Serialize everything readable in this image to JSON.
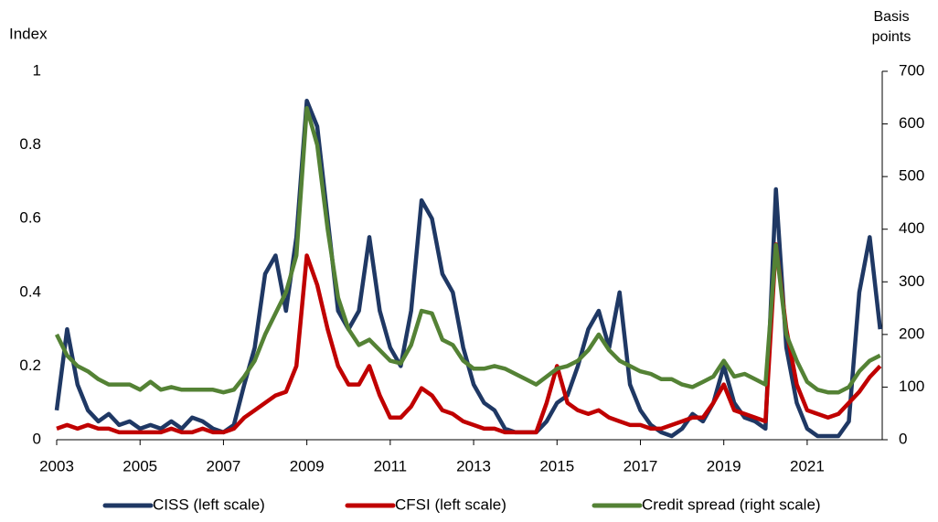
{
  "chart_data": {
    "type": "line",
    "ylabel": "Index",
    "y2label": "Basis points",
    "x": [
      2003,
      2003.25,
      2003.5,
      2003.75,
      2004,
      2004.25,
      2004.5,
      2004.75,
      2005,
      2005.25,
      2005.5,
      2005.75,
      2006,
      2006.25,
      2006.5,
      2006.75,
      2007,
      2007.25,
      2007.5,
      2007.75,
      2008,
      2008.25,
      2008.5,
      2008.75,
      2009,
      2009.25,
      2009.5,
      2009.75,
      2010,
      2010.25,
      2010.5,
      2010.75,
      2011,
      2011.25,
      2011.5,
      2011.75,
      2012,
      2012.25,
      2012.5,
      2012.75,
      2013,
      2013.25,
      2013.5,
      2013.75,
      2014,
      2014.25,
      2014.5,
      2014.75,
      2015,
      2015.25,
      2015.5,
      2015.75,
      2016,
      2016.25,
      2016.5,
      2016.75,
      2017,
      2017.25,
      2017.5,
      2017.75,
      2018,
      2018.25,
      2018.5,
      2018.75,
      2019,
      2019.25,
      2019.5,
      2019.75,
      2020,
      2020.25,
      2020.5,
      2020.75,
      2021,
      2021.25,
      2021.5,
      2021.75,
      2022,
      2022.25,
      2022.5,
      2022.75
    ],
    "series": [
      {
        "name": "CISS (left scale)",
        "color": "#1f3864",
        "values": [
          0.08,
          0.3,
          0.15,
          0.08,
          0.05,
          0.07,
          0.04,
          0.05,
          0.03,
          0.04,
          0.03,
          0.05,
          0.03,
          0.06,
          0.05,
          0.03,
          0.02,
          0.04,
          0.15,
          0.25,
          0.45,
          0.5,
          0.35,
          0.55,
          0.92,
          0.85,
          0.6,
          0.35,
          0.3,
          0.35,
          0.55,
          0.35,
          0.25,
          0.2,
          0.35,
          0.65,
          0.6,
          0.45,
          0.4,
          0.25,
          0.15,
          0.1,
          0.08,
          0.03,
          0.02,
          0.02,
          0.02,
          0.05,
          0.1,
          0.12,
          0.2,
          0.3,
          0.35,
          0.25,
          0.4,
          0.15,
          0.08,
          0.04,
          0.02,
          0.01,
          0.03,
          0.07,
          0.05,
          0.1,
          0.2,
          0.1,
          0.06,
          0.05,
          0.03,
          0.68,
          0.25,
          0.1,
          0.03,
          0.01,
          0.01,
          0.01,
          0.05,
          0.4,
          0.55,
          0.3
        ]
      },
      {
        "name": "CFSI (left scale)",
        "color": "#c00000",
        "values": [
          0.03,
          0.04,
          0.03,
          0.04,
          0.03,
          0.03,
          0.02,
          0.02,
          0.02,
          0.02,
          0.02,
          0.03,
          0.02,
          0.02,
          0.03,
          0.02,
          0.02,
          0.03,
          0.06,
          0.08,
          0.1,
          0.12,
          0.13,
          0.2,
          0.5,
          0.42,
          0.3,
          0.2,
          0.15,
          0.15,
          0.2,
          0.12,
          0.06,
          0.06,
          0.09,
          0.14,
          0.12,
          0.08,
          0.07,
          0.05,
          0.04,
          0.03,
          0.03,
          0.02,
          0.02,
          0.02,
          0.02,
          0.1,
          0.2,
          0.1,
          0.08,
          0.07,
          0.08,
          0.06,
          0.05,
          0.04,
          0.04,
          0.03,
          0.03,
          0.04,
          0.05,
          0.06,
          0.06,
          0.1,
          0.15,
          0.08,
          0.07,
          0.06,
          0.05,
          0.53,
          0.3,
          0.15,
          0.08,
          0.07,
          0.06,
          0.07,
          0.1,
          0.13,
          0.17,
          0.2
        ]
      },
      {
        "name": "Credit spread (right scale)",
        "color": "#548235",
        "axis": "y2",
        "values": [
          200,
          160,
          140,
          130,
          115,
          105,
          105,
          105,
          95,
          110,
          95,
          100,
          95,
          95,
          95,
          95,
          90,
          95,
          120,
          150,
          200,
          240,
          280,
          350,
          630,
          560,
          400,
          270,
          210,
          180,
          190,
          170,
          150,
          145,
          180,
          245,
          240,
          190,
          180,
          150,
          135,
          135,
          140,
          135,
          125,
          115,
          105,
          120,
          135,
          140,
          150,
          170,
          200,
          170,
          150,
          140,
          130,
          125,
          115,
          115,
          105,
          100,
          110,
          120,
          150,
          120,
          125,
          115,
          105,
          370,
          200,
          150,
          110,
          95,
          90,
          90,
          100,
          130,
          150,
          160
        ]
      }
    ],
    "xlim": [
      2003,
      2022.8
    ],
    "xticks": [
      2003,
      2005,
      2007,
      2009,
      2011,
      2013,
      2015,
      2017,
      2019,
      2021
    ],
    "ylim": [
      0,
      1
    ],
    "yticks": [
      0,
      0.2,
      0.4,
      0.6,
      0.8,
      1
    ],
    "y2lim": [
      0,
      700
    ],
    "y2ticks": [
      0,
      100,
      200,
      300,
      400,
      500,
      600,
      700
    ],
    "grid": false
  }
}
